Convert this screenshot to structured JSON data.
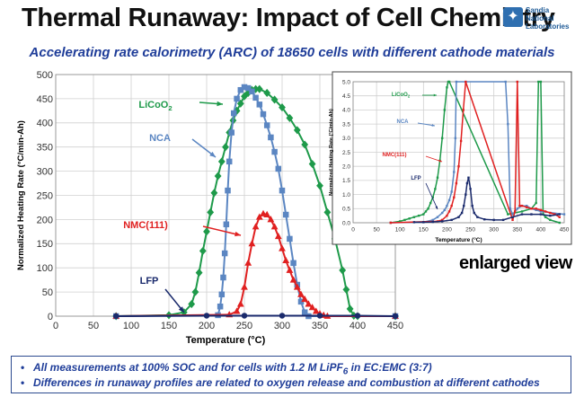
{
  "header": {
    "title": "Thermal Runaway: Impact of Cell Chemistry",
    "subtitle": "Accelerating rate calorimetry (ARC) of 18650 cells with different cathode materials",
    "logo_lines": [
      "Sandia",
      "National",
      "Laboratories"
    ],
    "logo_icon": "thunderbird-icon"
  },
  "inset_caption": "enlarged view",
  "footer": {
    "bullet1_a": "All measurements at 100% SOC and for cells with 1.2 M LiPF",
    "bullet1_sub": "6",
    "bullet1_b": " in EC:EMC (3:7)",
    "bullet2": "Differences in runaway profiles are related to oxygen release and combustion at different cathodes"
  },
  "colors": {
    "LiCoO2": "#1e9a4a",
    "NCA": "#5b86c2",
    "NMC(111)": "#e02020",
    "LFP": "#1a2a6c"
  },
  "chart_data": [
    {
      "type": "line",
      "xlabel": "Temperature (°C)",
      "ylabel": "Normalized Heating Rate (°C/min-Ah)",
      "xlim": [
        0,
        450
      ],
      "ylim": [
        0,
        500
      ],
      "xticks": [
        0,
        50,
        100,
        150,
        200,
        250,
        300,
        350,
        400,
        450
      ],
      "yticks": [
        0,
        50,
        100,
        150,
        200,
        250,
        300,
        350,
        400,
        450,
        500
      ],
      "grid": true,
      "annotations": [
        {
          "text": "LiCoO",
          "sub": "2",
          "series": "LiCoO2"
        },
        {
          "text": "NCA",
          "series": "NCA"
        },
        {
          "text": "NMC(111)",
          "series": "NMC(111)"
        },
        {
          "text": "LFP",
          "series": "LFP"
        }
      ],
      "series": [
        {
          "name": "LiCoO2",
          "marker": "diamond",
          "x": [
            80,
            150,
            170,
            180,
            185,
            190,
            195,
            200,
            205,
            210,
            215,
            220,
            225,
            230,
            235,
            240,
            245,
            250,
            255,
            260,
            265,
            270,
            280,
            290,
            300,
            310,
            320,
            330,
            340,
            350,
            360,
            370,
            380,
            385,
            390,
            395,
            400,
            450
          ],
          "y": [
            0,
            2,
            8,
            25,
            50,
            90,
            135,
            175,
            215,
            255,
            290,
            320,
            350,
            380,
            405,
            425,
            440,
            455,
            462,
            468,
            470,
            470,
            462,
            448,
            432,
            410,
            385,
            355,
            315,
            270,
            215,
            160,
            95,
            55,
            15,
            1,
            0,
            0
          ]
        },
        {
          "name": "NCA",
          "marker": "square",
          "x": [
            80,
            215,
            218,
            220,
            222,
            224,
            226,
            228,
            230,
            233,
            236,
            240,
            245,
            250,
            255,
            260,
            265,
            270,
            275,
            280,
            285,
            290,
            295,
            300,
            305,
            310,
            315,
            320,
            325,
            330,
            335,
            450
          ],
          "y": [
            0,
            2,
            20,
            45,
            80,
            130,
            190,
            260,
            320,
            380,
            420,
            450,
            468,
            474,
            472,
            465,
            452,
            438,
            418,
            395,
            370,
            340,
            305,
            260,
            210,
            160,
            110,
            65,
            30,
            8,
            0,
            0
          ]
        },
        {
          "name": "NMC(111)",
          "marker": "triangle",
          "x": [
            80,
            230,
            240,
            245,
            250,
            255,
            260,
            265,
            270,
            275,
            280,
            285,
            290,
            295,
            300,
            305,
            310,
            315,
            320,
            325,
            330,
            335,
            340,
            345,
            350,
            355,
            360,
            450
          ],
          "y": [
            0,
            3,
            10,
            25,
            60,
            110,
            150,
            185,
            205,
            212,
            210,
            200,
            185,
            165,
            140,
            115,
            95,
            75,
            60,
            45,
            35,
            25,
            18,
            10,
            5,
            2,
            0,
            0
          ]
        },
        {
          "name": "LFP",
          "marker": "circle",
          "x": [
            80,
            200,
            250,
            300,
            350,
            400,
            450
          ],
          "y": [
            0,
            1,
            1,
            1,
            1,
            1,
            0
          ]
        }
      ]
    },
    {
      "type": "line",
      "xlabel": "Temperature (°C)",
      "ylabel": "Normalized Heating Rate (°C/min-Ah)",
      "xlim": [
        0,
        450
      ],
      "ylim": [
        0,
        5
      ],
      "xticks": [
        0,
        50,
        100,
        150,
        200,
        250,
        300,
        350,
        400,
        450
      ],
      "yticks": [
        0.0,
        0.5,
        1.0,
        1.5,
        2.0,
        2.5,
        3.0,
        3.5,
        4.0,
        4.5,
        5.0
      ],
      "ytick_labels": [
        "0.0",
        "0.5",
        "1.0",
        "1.5",
        "2.0",
        "2.5",
        "3.0",
        "3.5",
        "4.0",
        "4.5",
        "5.0"
      ],
      "grid": true,
      "annotations": [
        {
          "text": "LiCoO",
          "sub": "2",
          "series": "LiCoO2"
        },
        {
          "text": "NCA",
          "series": "NCA"
        },
        {
          "text": "NMC(111)",
          "series": "NMC(111)"
        },
        {
          "text": "LFP",
          "series": "LFP"
        }
      ],
      "series": [
        {
          "name": "LiCoO2",
          "x": [
            80,
            100,
            110,
            120,
            130,
            140,
            150,
            155,
            160,
            165,
            170,
            175,
            180,
            185,
            190,
            195,
            200,
            203,
            205,
            330,
            360,
            380,
            390,
            395,
            400,
            405,
            410,
            420,
            440
          ],
          "y": [
            0,
            0.05,
            0.1,
            0.15,
            0.2,
            0.25,
            0.3,
            0.4,
            0.5,
            0.7,
            0.9,
            1.2,
            1.6,
            2.2,
            3.0,
            4.0,
            4.8,
            5.0,
            5.0,
            0.3,
            0.4,
            0.5,
            0.7,
            5.0,
            5.0,
            0.3,
            0.2,
            0.1,
            0
          ]
        },
        {
          "name": "NCA",
          "x": [
            80,
            150,
            170,
            180,
            190,
            195,
            200,
            205,
            210,
            215,
            218,
            220,
            325,
            330,
            335,
            340,
            350,
            360,
            370,
            380,
            390,
            400,
            450
          ],
          "y": [
            0,
            0.02,
            0.1,
            0.2,
            0.35,
            0.45,
            0.6,
            0.8,
            1.1,
            1.8,
            3.0,
            5.0,
            5.0,
            3.5,
            0.5,
            0.3,
            0.5,
            0.6,
            0.6,
            0.5,
            0.45,
            0.4,
            0.3
          ]
        },
        {
          "name": "NMC(111)",
          "x": [
            80,
            180,
            190,
            200,
            205,
            210,
            215,
            220,
            225,
            230,
            235,
            240,
            340,
            345,
            350,
            355,
            360,
            370,
            380,
            390,
            400,
            410,
            420,
            430,
            440
          ],
          "y": [
            0,
            0.05,
            0.1,
            0.25,
            0.4,
            0.6,
            0.9,
            1.4,
            2.0,
            2.9,
            4.0,
            5.0,
            0.1,
            0.4,
            5.0,
            0.6,
            0.6,
            0.55,
            0.5,
            0.5,
            0.45,
            0.4,
            0.35,
            0.3,
            0.2
          ]
        },
        {
          "name": "LFP",
          "x": [
            130,
            150,
            170,
            190,
            210,
            225,
            232,
            236,
            240,
            243,
            246,
            250,
            254,
            258,
            265,
            280,
            300,
            320,
            340,
            360,
            380,
            400,
            420,
            440
          ],
          "y": [
            0.02,
            0.02,
            0.03,
            0.05,
            0.1,
            0.2,
            0.35,
            0.6,
            1.0,
            1.4,
            1.6,
            1.2,
            0.6,
            0.35,
            0.2,
            0.12,
            0.1,
            0.1,
            0.2,
            0.3,
            0.3,
            0.3,
            0.25,
            0.3
          ]
        }
      ]
    }
  ]
}
